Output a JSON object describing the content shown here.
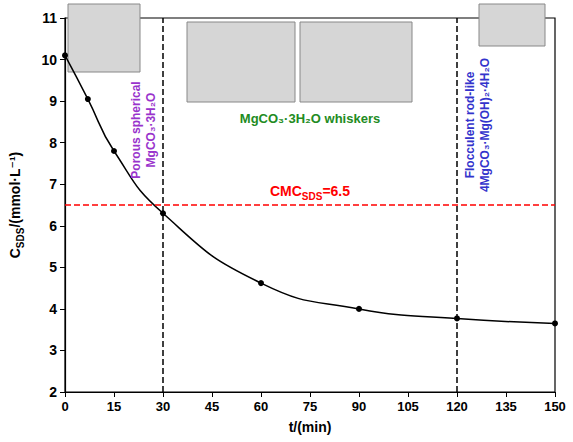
{
  "chart_data": {
    "type": "line",
    "x_label": "t/(min)",
    "y_label": {
      "base": "C",
      "sub": "SDS",
      "rest": "/(mmol·L⁻¹)"
    },
    "x": [
      0,
      7,
      15,
      30,
      60,
      90,
      120,
      150
    ],
    "values": [
      10.1,
      9.05,
      7.8,
      6.3,
      4.62,
      4.0,
      3.77,
      3.65
    ],
    "color": "#000000",
    "marker": "circle",
    "line_style": "solid",
    "xlim": [
      0,
      150
    ],
    "xticks": [
      0,
      15,
      30,
      45,
      60,
      75,
      90,
      105,
      120,
      135,
      150
    ],
    "ylim": [
      2,
      11
    ],
    "yticks": [
      2,
      3,
      4,
      5,
      6,
      7,
      8,
      9,
      10,
      11
    ],
    "grid": false,
    "reference_lines": [
      {
        "axis": "y",
        "value": 6.5,
        "color": "#ff0000",
        "line_style": "dashed",
        "label": {
          "base": "CMC",
          "sub": "SDS",
          "rest": "=6.5"
        }
      },
      {
        "axis": "x",
        "value": 30,
        "color": "#000000",
        "line_style": "dashed"
      },
      {
        "axis": "x",
        "value": 120,
        "color": "#000000",
        "line_style": "dashed"
      }
    ],
    "annotations": [
      {
        "lines": [
          "Porous spherical",
          "MgCO₃·3H₂O"
        ],
        "color": "#9933cc"
      },
      {
        "lines": [
          "MgCO₃·3H₂O whiskers"
        ],
        "color": "#228b22"
      },
      {
        "lines": [
          "Flocculent rod-like",
          "4MgCO₃·Mg(OH)₂·4H₂O"
        ],
        "color": "#3333cc"
      }
    ]
  }
}
